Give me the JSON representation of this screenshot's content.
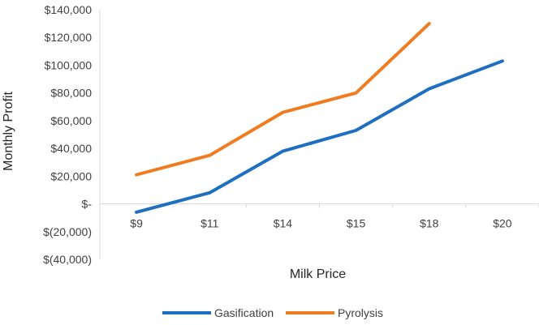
{
  "chart_data": {
    "type": "line",
    "title": "",
    "xlabel": "Milk Price",
    "ylabel": "Monthly Profit",
    "categories": [
      "$9",
      "$11",
      "$14",
      "$15",
      "$18",
      "$20"
    ],
    "y_tick_labels": [
      "$(40,000)",
      "$(20,000)",
      "$-",
      "$20,000",
      "$40,000",
      "$60,000",
      "$80,000",
      "$100,000",
      "$120,000",
      "$140,000"
    ],
    "y_tick_values": [
      -40000,
      -20000,
      0,
      20000,
      40000,
      60000,
      80000,
      100000,
      120000,
      140000
    ],
    "ylim": [
      -40000,
      140000
    ],
    "grid": false,
    "legend_position": "bottom",
    "series": [
      {
        "name": "Gasification",
        "color": "#1f6fc1",
        "values": [
          -6000,
          8000,
          38000,
          53000,
          83000,
          103000
        ]
      },
      {
        "name": "Pyrolysis",
        "color": "#f07c22",
        "values": [
          21000,
          35000,
          66000,
          80000,
          130000,
          null
        ]
      }
    ]
  }
}
